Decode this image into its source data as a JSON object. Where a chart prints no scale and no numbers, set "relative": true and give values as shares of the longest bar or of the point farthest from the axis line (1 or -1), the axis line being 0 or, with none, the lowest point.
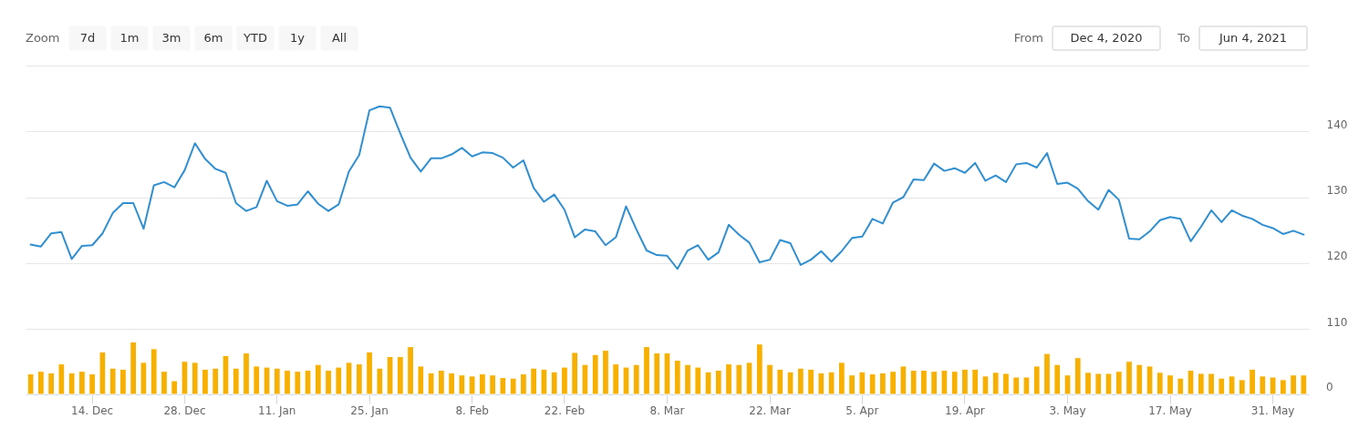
{
  "chart_data": [
    {
      "type": "line",
      "categories": [
        null,
        null,
        null,
        null,
        null,
        null,
        "14. Dec",
        null,
        null,
        null,
        null,
        null,
        null,
        null,
        null,
        "28. Dec",
        null,
        null,
        null,
        null,
        null,
        null,
        null,
        null,
        "11. Jan",
        null,
        null,
        null,
        null,
        null,
        null,
        null,
        null,
        "25. Jan",
        null,
        null,
        null,
        null,
        null,
        null,
        null,
        null,
        null,
        "8. Feb",
        null,
        null,
        null,
        null,
        null,
        null,
        null,
        null,
        "22. Feb",
        null,
        null,
        null,
        null,
        null,
        null,
        null,
        null,
        null,
        "8. Mar",
        null,
        null,
        null,
        null,
        null,
        null,
        null,
        null,
        null,
        "22. Mar",
        null,
        null,
        null,
        null,
        null,
        null,
        null,
        null,
        "5. Apr",
        null,
        null,
        null,
        null,
        null,
        null,
        null,
        null,
        null,
        "19. Apr",
        null,
        null,
        null,
        null,
        null,
        null,
        null,
        null,
        null,
        "3. May",
        null,
        null,
        null,
        null,
        null,
        null,
        null,
        null,
        null,
        "17. May",
        null,
        null,
        null,
        null,
        null,
        null,
        null,
        null,
        null,
        "31. May",
        null,
        null,
        null
      ],
      "values": [
        122.8,
        122.5,
        124.5,
        124.7,
        120.6,
        122.6,
        122.7,
        124.5,
        127.6,
        129.1,
        129.1,
        125.2,
        131.8,
        132.3,
        131.5,
        134.1,
        138.2,
        135.8,
        134.3,
        133.7,
        129.1,
        127.9,
        128.5,
        132.5,
        129.4,
        128.7,
        128.9,
        130.9,
        129.0,
        127.9,
        128.9,
        133.9,
        136.4,
        143.2,
        143.8,
        143.6,
        139.7,
        136.0,
        133.9,
        135.9,
        135.9,
        136.5,
        137.5,
        136.2,
        136.8,
        136.7,
        136.0,
        134.5,
        135.6,
        131.4,
        129.3,
        130.4,
        128.1,
        123.9,
        125.1,
        124.8,
        122.7,
        123.9,
        128.6,
        125.1,
        121.9,
        121.2,
        121.1,
        119.1,
        121.9,
        122.7,
        120.5,
        121.6,
        125.8,
        124.3,
        123.1,
        120.1,
        120.5,
        123.5,
        123.0,
        119.7,
        120.5,
        121.8,
        120.2,
        121.8,
        123.8,
        124.0,
        126.7,
        126.0,
        129.2,
        130.0,
        132.7,
        132.6,
        135.1,
        134.0,
        134.4,
        133.7,
        135.2,
        132.5,
        133.3,
        132.3,
        135.0,
        135.2,
        134.5,
        136.7,
        132.0,
        132.2,
        131.3,
        129.4,
        128.1,
        131.1,
        129.6,
        123.7,
        123.6,
        124.8,
        126.5,
        127.0,
        126.7,
        123.3,
        125.5,
        128.0,
        126.2,
        128.0,
        127.2,
        126.7,
        125.8,
        125.3,
        124.4,
        124.9,
        124.3
      ],
      "color": "#2f8fd1",
      "ylim": [
        110,
        150
      ],
      "yticks": [
        {
          "value": 150,
          "label": null
        },
        140,
        130,
        120,
        110
      ],
      "grid": "y",
      "tick_labels": "y",
      "annotations": [
        "Zoom",
        "7d",
        "1m",
        "3m",
        "6m",
        "YTD",
        "1y",
        "All",
        "From",
        "Dec 4, 2020",
        "To",
        "Jun 4, 2021"
      ]
    },
    {
      "type": "bar",
      "categories": [
        null,
        null,
        null,
        null,
        null,
        null,
        "14. Dec",
        null,
        null,
        null,
        null,
        null,
        null,
        null,
        null,
        "28. Dec",
        null,
        null,
        null,
        null,
        null,
        null,
        null,
        null,
        "11. Jan",
        null,
        null,
        null,
        null,
        null,
        null,
        null,
        null,
        "25. Jan",
        null,
        null,
        null,
        null,
        null,
        null,
        null,
        null,
        null,
        "8. Feb",
        null,
        null,
        null,
        null,
        null,
        null,
        null,
        null,
        "22. Feb",
        null,
        null,
        null,
        null,
        null,
        null,
        null,
        null,
        null,
        "8. Mar",
        null,
        null,
        null,
        null,
        null,
        null,
        null,
        null,
        null,
        "22. Mar",
        null,
        null,
        null,
        null,
        null,
        null,
        null,
        null,
        "5. Apr",
        null,
        null,
        null,
        null,
        null,
        null,
        null,
        null,
        null,
        "19. Apr",
        null,
        null,
        null,
        null,
        null,
        null,
        null,
        null,
        null,
        "3. May",
        null,
        null,
        null,
        null,
        null,
        null,
        null,
        null,
        null,
        "17. May",
        null,
        null,
        null,
        null,
        null,
        null,
        null,
        null,
        null,
        "31. May",
        null,
        null,
        null
      ],
      "values": [
        0.39,
        0.44,
        0.41,
        0.58,
        0.41,
        0.44,
        0.39,
        0.81,
        0.5,
        0.48,
        1,
        0.61,
        0.87,
        0.44,
        0.26,
        0.63,
        0.61,
        0.48,
        0.5,
        0.74,
        0.5,
        0.79,
        0.54,
        0.52,
        0.5,
        0.46,
        0.44,
        0.46,
        0.57,
        0.46,
        0.52,
        0.61,
        0.58,
        0.81,
        0.5,
        0.72,
        0.72,
        0.91,
        0.54,
        0.41,
        0.46,
        0.41,
        0.37,
        0.35,
        0.39,
        0.37,
        0.32,
        0.31,
        0.39,
        0.5,
        0.48,
        0.43,
        0.52,
        0.8,
        0.57,
        0.76,
        0.84,
        0.58,
        0.52,
        0.57,
        0.91,
        0.79,
        0.79,
        0.65,
        0.57,
        0.52,
        0.43,
        0.46,
        0.58,
        0.57,
        0.61,
        0.96,
        0.57,
        0.48,
        0.43,
        0.5,
        0.48,
        0.41,
        0.43,
        0.61,
        0.37,
        0.43,
        0.39,
        0.41,
        0.44,
        0.54,
        0.46,
        0.46,
        0.44,
        0.46,
        0.44,
        0.48,
        0.48,
        0.35,
        0.42,
        0.4,
        0.33,
        0.33,
        0.54,
        0.78,
        0.57,
        0.37,
        0.7,
        0.42,
        0.4,
        0.4,
        0.44,
        0.63,
        0.57,
        0.54,
        0.42,
        0.37,
        0.31,
        0.46,
        0.4,
        0.4,
        0.31,
        0.35,
        0.28,
        0.48,
        0.35,
        0.33,
        0.28,
        0.37,
        0.37
      ],
      "color": "#f7b000",
      "relative": true,
      "tick_labels": "x",
      "annotations": [
        "0"
      ]
    }
  ]
}
